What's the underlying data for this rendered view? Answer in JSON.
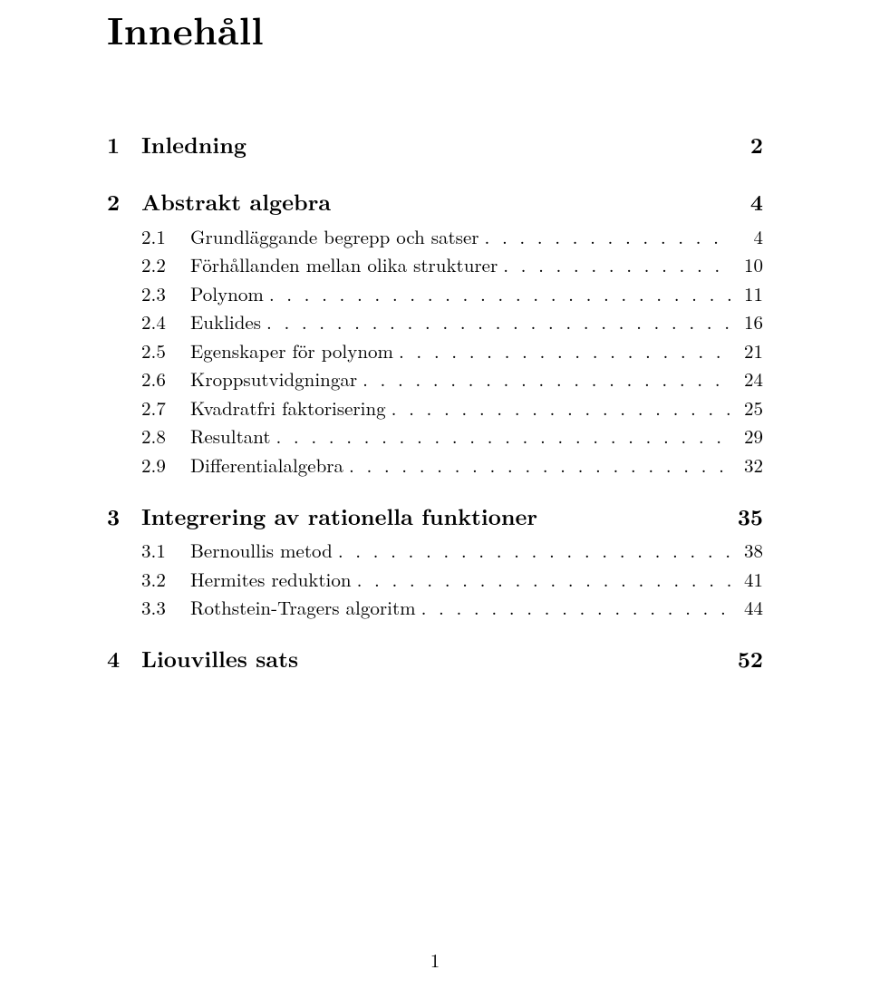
{
  "title": "Innehåll",
  "footer_page_number": "1",
  "dot_leader": ". . . . . . . . . . . . . . . . . . . . . . . . . . . . . . . . . . . . . . . . . . . . . . . . . . . . .",
  "toc": {
    "sections": [
      {
        "num": "1",
        "label": "Inledning",
        "page": "2",
        "subs": []
      },
      {
        "num": "2",
        "label": "Abstrakt algebra",
        "page": "4",
        "subs": [
          {
            "num": "2.1",
            "label": "Grundläggande begrepp och satser",
            "page": "4"
          },
          {
            "num": "2.2",
            "label": "Förhållanden mellan olika strukturer",
            "page": "10"
          },
          {
            "num": "2.3",
            "label": "Polynom",
            "page": "11"
          },
          {
            "num": "2.4",
            "label": "Euklides",
            "page": "16"
          },
          {
            "num": "2.5",
            "label": "Egenskaper för polynom",
            "page": "21"
          },
          {
            "num": "2.6",
            "label": "Kroppsutvidgningar",
            "page": "24"
          },
          {
            "num": "2.7",
            "label": "Kvadratfri faktorisering",
            "page": "25"
          },
          {
            "num": "2.8",
            "label": "Resultant",
            "page": "29"
          },
          {
            "num": "2.9",
            "label": "Differentialalgebra",
            "page": "32"
          }
        ]
      },
      {
        "num": "3",
        "label": "Integrering av rationella funktioner",
        "page": "35",
        "subs": [
          {
            "num": "3.1",
            "label": "Bernoullis metod",
            "page": "38"
          },
          {
            "num": "3.2",
            "label": "Hermites reduktion",
            "page": "41"
          },
          {
            "num": "3.3",
            "label": "Rothstein-Tragers algoritm",
            "page": "44"
          }
        ]
      },
      {
        "num": "4",
        "label": "Liouvilles sats",
        "page": "52",
        "subs": []
      }
    ]
  }
}
